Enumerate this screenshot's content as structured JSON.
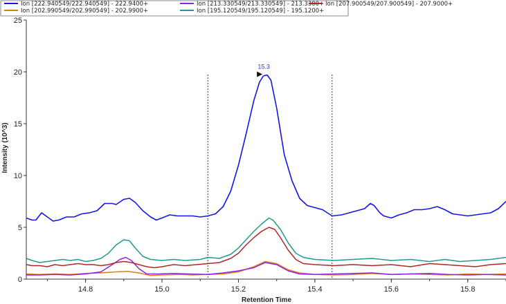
{
  "chart_data": {
    "type": "line",
    "xlabel": "Retention Time",
    "ylabel": "Intensity (10^3)",
    "xlim": [
      14.645,
      15.9
    ],
    "ylim": [
      0,
      25
    ],
    "xticks": [
      "14.8",
      "15.0",
      "15.2",
      "15.4",
      "15.6",
      "15.8"
    ],
    "yticks": [
      "0",
      "5",
      "10",
      "15",
      "20",
      "25"
    ],
    "integration_bounds": [
      15.12,
      15.445
    ],
    "peak": {
      "label": "15.3",
      "x": 15.27,
      "y": 19.7
    },
    "series": [
      {
        "name": "Ion [222.940549/222.940549] - 222.9400+",
        "color": "#1414e6",
        "points": [
          [
            14.645,
            5.9
          ],
          [
            14.66,
            5.7
          ],
          [
            14.67,
            5.7
          ],
          [
            14.685,
            6.4
          ],
          [
            14.7,
            6.0
          ],
          [
            14.715,
            5.6
          ],
          [
            14.73,
            5.7
          ],
          [
            14.75,
            6.0
          ],
          [
            14.77,
            6.0
          ],
          [
            14.79,
            6.3
          ],
          [
            14.81,
            6.4
          ],
          [
            14.83,
            6.6
          ],
          [
            14.85,
            7.3
          ],
          [
            14.87,
            7.3
          ],
          [
            14.88,
            7.2
          ],
          [
            14.9,
            7.7
          ],
          [
            14.915,
            7.8
          ],
          [
            14.93,
            7.4
          ],
          [
            14.95,
            6.6
          ],
          [
            14.97,
            6.0
          ],
          [
            14.985,
            5.7
          ],
          [
            15.0,
            5.9
          ],
          [
            15.02,
            6.2
          ],
          [
            15.04,
            6.1
          ],
          [
            15.06,
            6.1
          ],
          [
            15.08,
            6.1
          ],
          [
            15.1,
            6.0
          ],
          [
            15.12,
            6.1
          ],
          [
            15.14,
            6.3
          ],
          [
            15.16,
            7.0
          ],
          [
            15.18,
            8.5
          ],
          [
            15.2,
            11.0
          ],
          [
            15.22,
            14.0
          ],
          [
            15.24,
            17.2
          ],
          [
            15.255,
            19.0
          ],
          [
            15.265,
            19.6
          ],
          [
            15.275,
            19.7
          ],
          [
            15.285,
            19.2
          ],
          [
            15.3,
            16.5
          ],
          [
            15.32,
            12.0
          ],
          [
            15.34,
            9.5
          ],
          [
            15.36,
            7.8
          ],
          [
            15.38,
            7.1
          ],
          [
            15.4,
            6.9
          ],
          [
            15.42,
            6.7
          ],
          [
            15.445,
            6.1
          ],
          [
            15.47,
            6.2
          ],
          [
            15.49,
            6.4
          ],
          [
            15.51,
            6.6
          ],
          [
            15.53,
            6.8
          ],
          [
            15.545,
            7.3
          ],
          [
            15.555,
            7.1
          ],
          [
            15.57,
            6.4
          ],
          [
            15.58,
            6.1
          ],
          [
            15.6,
            5.9
          ],
          [
            15.62,
            6.2
          ],
          [
            15.64,
            6.4
          ],
          [
            15.66,
            6.7
          ],
          [
            15.68,
            6.7
          ],
          [
            15.7,
            6.8
          ],
          [
            15.72,
            7.0
          ],
          [
            15.74,
            6.7
          ],
          [
            15.76,
            6.3
          ],
          [
            15.78,
            6.2
          ],
          [
            15.8,
            6.1
          ],
          [
            15.82,
            6.2
          ],
          [
            15.84,
            6.3
          ],
          [
            15.86,
            6.4
          ],
          [
            15.88,
            6.8
          ],
          [
            15.9,
            7.5
          ]
        ]
      },
      {
        "name": "Ion [202.990549/202.990549] - 202.9900+",
        "color": "#e07d10",
        "points": [
          [
            14.645,
            0.5
          ],
          [
            14.68,
            0.45
          ],
          [
            14.72,
            0.5
          ],
          [
            14.76,
            0.45
          ],
          [
            14.8,
            0.55
          ],
          [
            14.84,
            0.6
          ],
          [
            14.88,
            0.7
          ],
          [
            14.91,
            0.75
          ],
          [
            14.94,
            0.6
          ],
          [
            14.97,
            0.35
          ],
          [
            15.0,
            0.4
          ],
          [
            15.04,
            0.45
          ],
          [
            15.08,
            0.4
          ],
          [
            15.12,
            0.45
          ],
          [
            15.16,
            0.5
          ],
          [
            15.2,
            0.7
          ],
          [
            15.24,
            1.2
          ],
          [
            15.27,
            1.7
          ],
          [
            15.3,
            1.5
          ],
          [
            15.33,
            0.9
          ],
          [
            15.36,
            0.6
          ],
          [
            15.4,
            0.45
          ],
          [
            15.45,
            0.4
          ],
          [
            15.5,
            0.45
          ],
          [
            15.55,
            0.55
          ],
          [
            15.6,
            0.45
          ],
          [
            15.65,
            0.5
          ],
          [
            15.7,
            0.45
          ],
          [
            15.75,
            0.4
          ],
          [
            15.8,
            0.5
          ],
          [
            15.85,
            0.45
          ],
          [
            15.9,
            0.5
          ]
        ]
      },
      {
        "name": "Ion [213.330549/213.330549] - 213.3300+",
        "color": "#8a22e8",
        "points": [
          [
            14.645,
            0.4
          ],
          [
            14.68,
            0.4
          ],
          [
            14.72,
            0.45
          ],
          [
            14.76,
            0.4
          ],
          [
            14.8,
            0.5
          ],
          [
            14.84,
            0.7
          ],
          [
            14.87,
            1.4
          ],
          [
            14.89,
            1.9
          ],
          [
            14.905,
            2.1
          ],
          [
            14.92,
            1.8
          ],
          [
            14.94,
            1.0
          ],
          [
            14.96,
            0.5
          ],
          [
            14.99,
            0.5
          ],
          [
            15.03,
            0.55
          ],
          [
            15.07,
            0.5
          ],
          [
            15.12,
            0.45
          ],
          [
            15.16,
            0.6
          ],
          [
            15.2,
            0.8
          ],
          [
            15.24,
            1.1
          ],
          [
            15.27,
            1.6
          ],
          [
            15.3,
            1.4
          ],
          [
            15.33,
            0.8
          ],
          [
            15.36,
            0.5
          ],
          [
            15.4,
            0.45
          ],
          [
            15.45,
            0.5
          ],
          [
            15.5,
            0.55
          ],
          [
            15.55,
            0.6
          ],
          [
            15.6,
            0.45
          ],
          [
            15.65,
            0.5
          ],
          [
            15.7,
            0.55
          ],
          [
            15.75,
            0.45
          ],
          [
            15.8,
            0.4
          ],
          [
            15.85,
            0.45
          ],
          [
            15.9,
            0.4
          ]
        ]
      },
      {
        "name": "Ion [195.120549/195.120549] - 195.1200+",
        "color": "#1f9a8c",
        "points": [
          [
            14.645,
            2.0
          ],
          [
            14.66,
            1.8
          ],
          [
            14.68,
            1.6
          ],
          [
            14.7,
            1.7
          ],
          [
            14.72,
            1.8
          ],
          [
            14.74,
            1.9
          ],
          [
            14.76,
            1.8
          ],
          [
            14.78,
            1.9
          ],
          [
            14.8,
            1.7
          ],
          [
            14.82,
            1.8
          ],
          [
            14.84,
            2.0
          ],
          [
            14.86,
            2.5
          ],
          [
            14.88,
            3.3
          ],
          [
            14.9,
            3.8
          ],
          [
            14.915,
            3.7
          ],
          [
            14.93,
            3.0
          ],
          [
            14.95,
            2.2
          ],
          [
            14.97,
            1.9
          ],
          [
            15.0,
            1.8
          ],
          [
            15.03,
            1.9
          ],
          [
            15.06,
            1.8
          ],
          [
            15.1,
            1.9
          ],
          [
            15.12,
            2.1
          ],
          [
            15.15,
            2.0
          ],
          [
            15.18,
            2.4
          ],
          [
            15.2,
            3.0
          ],
          [
            15.22,
            3.8
          ],
          [
            15.24,
            4.6
          ],
          [
            15.26,
            5.3
          ],
          [
            15.28,
            5.9
          ],
          [
            15.29,
            5.7
          ],
          [
            15.31,
            4.8
          ],
          [
            15.33,
            3.5
          ],
          [
            15.35,
            2.5
          ],
          [
            15.37,
            2.1
          ],
          [
            15.4,
            1.9
          ],
          [
            15.45,
            1.8
          ],
          [
            15.5,
            1.9
          ],
          [
            15.55,
            2.0
          ],
          [
            15.6,
            1.8
          ],
          [
            15.65,
            1.9
          ],
          [
            15.7,
            1.7
          ],
          [
            15.74,
            1.9
          ],
          [
            15.78,
            1.7
          ],
          [
            15.82,
            1.8
          ],
          [
            15.86,
            1.9
          ],
          [
            15.9,
            2.1
          ]
        ]
      },
      {
        "name": "Ion [207.900549/207.900549] - 207.9000+",
        "color": "#b02525",
        "points": [
          [
            14.645,
            1.4
          ],
          [
            14.66,
            1.3
          ],
          [
            14.68,
            1.3
          ],
          [
            14.7,
            1.2
          ],
          [
            14.72,
            1.4
          ],
          [
            14.74,
            1.3
          ],
          [
            14.76,
            1.4
          ],
          [
            14.78,
            1.5
          ],
          [
            14.8,
            1.4
          ],
          [
            14.82,
            1.4
          ],
          [
            14.84,
            1.3
          ],
          [
            14.86,
            1.4
          ],
          [
            14.88,
            1.6
          ],
          [
            14.9,
            1.7
          ],
          [
            14.92,
            1.6
          ],
          [
            14.94,
            1.4
          ],
          [
            14.96,
            1.2
          ],
          [
            14.98,
            1.1
          ],
          [
            15.0,
            1.2
          ],
          [
            15.03,
            1.4
          ],
          [
            15.06,
            1.3
          ],
          [
            15.09,
            1.4
          ],
          [
            15.12,
            1.5
          ],
          [
            15.15,
            1.6
          ],
          [
            15.18,
            2.0
          ],
          [
            15.2,
            2.5
          ],
          [
            15.22,
            3.3
          ],
          [
            15.24,
            4.0
          ],
          [
            15.26,
            4.6
          ],
          [
            15.28,
            5.0
          ],
          [
            15.295,
            4.8
          ],
          [
            15.31,
            4.0
          ],
          [
            15.33,
            2.8
          ],
          [
            15.35,
            1.9
          ],
          [
            15.37,
            1.5
          ],
          [
            15.4,
            1.4
          ],
          [
            15.45,
            1.3
          ],
          [
            15.5,
            1.4
          ],
          [
            15.55,
            1.3
          ],
          [
            15.6,
            1.4
          ],
          [
            15.65,
            1.2
          ],
          [
            15.7,
            1.5
          ],
          [
            15.74,
            1.4
          ],
          [
            15.78,
            1.3
          ],
          [
            15.82,
            1.2
          ],
          [
            15.86,
            1.4
          ],
          [
            15.9,
            1.5
          ]
        ]
      }
    ]
  },
  "legend": [
    {
      "label": "Ion [222.940549/222.940549] - 222.9400+",
      "color": "#1414e6"
    },
    {
      "label": "Ion [213.330549/213.330549] - 213.3300+",
      "color": "#8a22e8"
    },
    {
      "label": "Ion [207.900549/207.900549] - 207.9000+",
      "color": "#b02525"
    },
    {
      "label": "Ion [202.990549/202.990549] - 202.9900+",
      "color": "#e07d10"
    },
    {
      "label": "Ion [195.120549/195.120549] - 195.1200+",
      "color": "#1f9a8c"
    }
  ]
}
